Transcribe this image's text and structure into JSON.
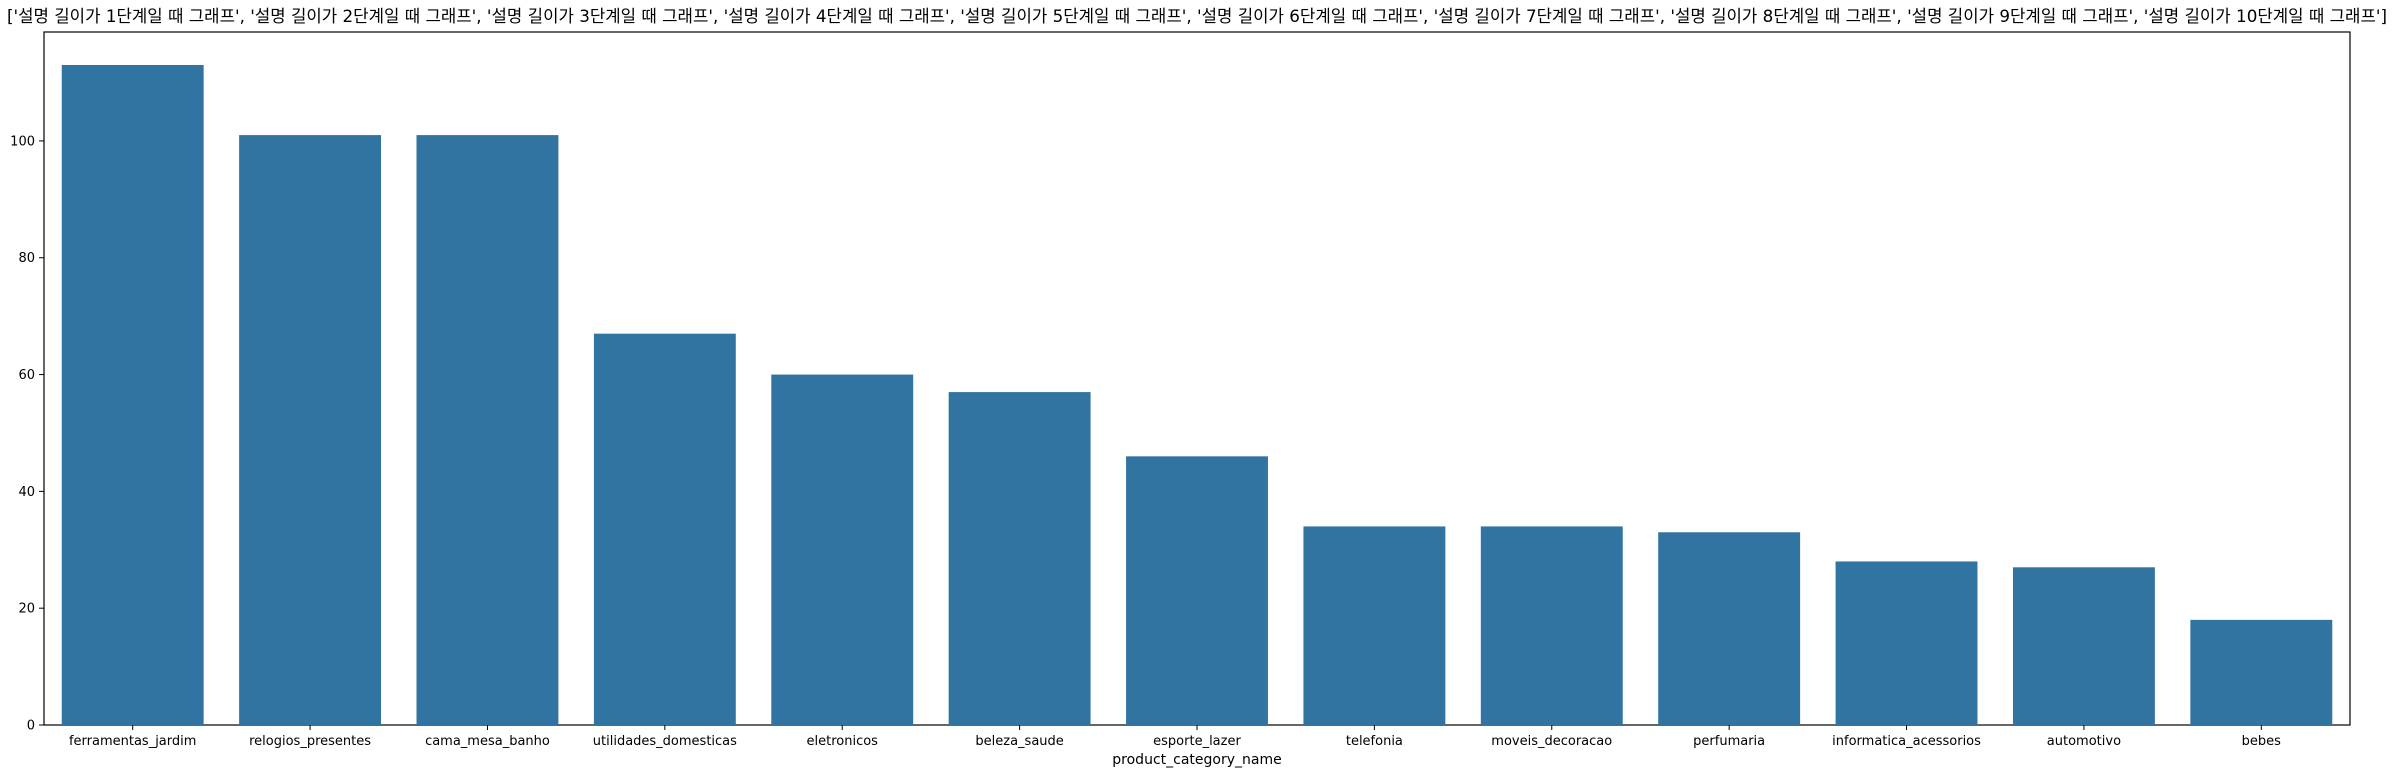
{
  "chart_data": {
    "type": "bar",
    "title": "['설명 길이가 1단계일 때 그래프', '설명 길이가 2단계일 때 그래프', '설명 길이가 3단계일 때 그래프', '설명 길이가 4단계일 때 그래프', '설명 길이가 5단계일 때 그래프', '설명 길이가 6단계일 때 그래프', '설명 길이가 7단계일 때 그래프', '설명 길이가 8단계일 때 그래프', '설명 길이가 9단계일 때 그래프', '설명 길이가 10단계일 때 그래프']",
    "xlabel": "product_category_name",
    "ylabel": "",
    "categories": [
      "ferramentas_jardim",
      "relogios_presentes",
      "cama_mesa_banho",
      "utilidades_domesticas",
      "eletronicos",
      "beleza_saude",
      "esporte_lazer",
      "telefonia",
      "moveis_decoracao",
      "perfumaria",
      "informatica_acessorios",
      "automotivo",
      "bebes"
    ],
    "values": [
      113,
      101,
      101,
      67,
      60,
      57,
      46,
      34,
      34,
      33,
      28,
      27,
      18
    ],
    "ylim": [
      0,
      118.65
    ],
    "yticks": [
      0,
      20,
      40,
      60,
      80,
      100
    ],
    "bar_color": "#3274a1",
    "grid": false,
    "legend": "none"
  }
}
